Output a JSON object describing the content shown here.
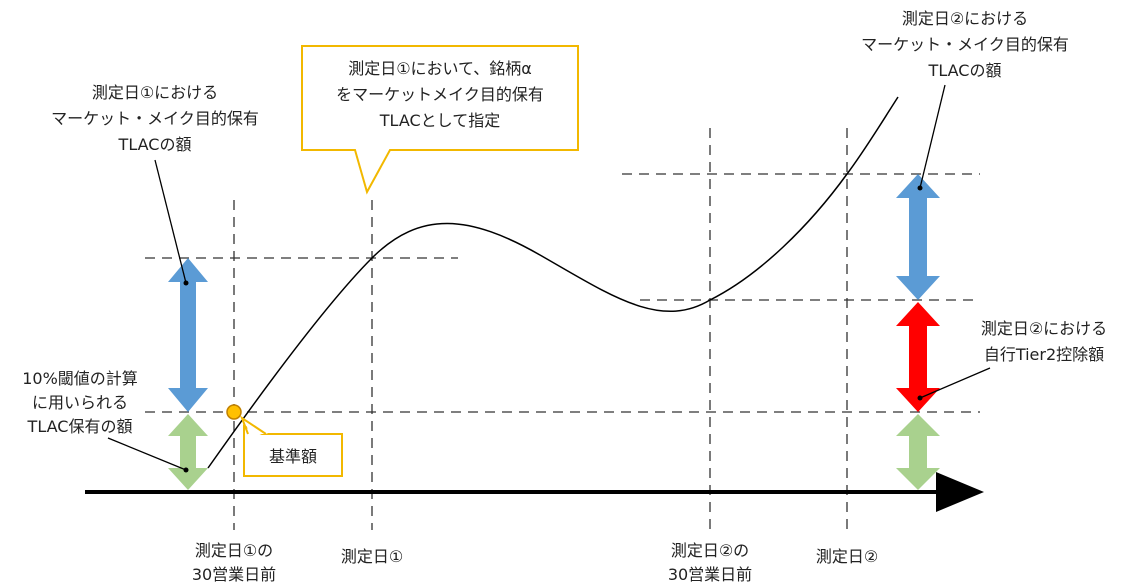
{
  "labels": {
    "top_right": [
      "測定日②における",
      "マーケット・メイク目的保有",
      "TLACの額"
    ],
    "left_upper": [
      "測定日①における",
      "マーケット・メイク目的保有",
      "TLACの額"
    ],
    "left_lower": [
      "10%閾値の計算",
      "に用いられる",
      "TLAC保有の額"
    ],
    "right_middle": [
      "測定日②における",
      "自行Tier2控除額"
    ]
  },
  "callouts": {
    "designation": [
      "測定日①において、銘柄α",
      "をマーケットメイク目的保有",
      "TLACとして指定"
    ],
    "base_amount": "基準額"
  },
  "axis_labels": {
    "day1_30": [
      "測定日①の",
      "30営業日前"
    ],
    "day1": "測定日①",
    "day2_30": [
      "測定日②の",
      "30営業日前"
    ],
    "day2": "測定日②"
  },
  "colors": {
    "blue_arrow": "#5B9BD5",
    "green_arrow": "#A9D18E",
    "red_arrow": "#FF0000",
    "callout_border": "#F2B800",
    "marker_fill": "#FFC000",
    "marker_stroke": "#C08000"
  }
}
